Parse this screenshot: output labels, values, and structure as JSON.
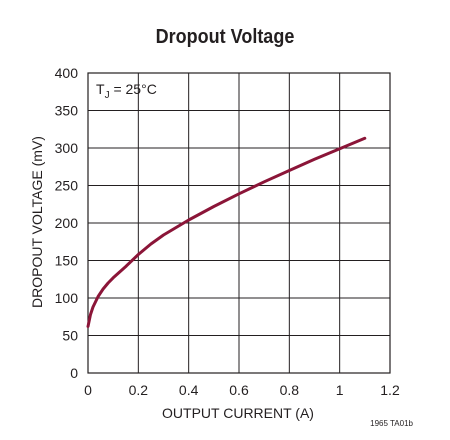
{
  "chart_data": {
    "type": "line",
    "title": "Dropout Voltage",
    "xlabel": "OUTPUT CURRENT (A)",
    "ylabel": "DROPOUT VOLTAGE (mV)",
    "xlim": [
      0,
      1.2
    ],
    "ylim": [
      0,
      400
    ],
    "x_ticks": [
      "0",
      "0.2",
      "0.4",
      "0.6",
      "0.8",
      "1",
      "1.2"
    ],
    "y_ticks": [
      "0",
      "50",
      "100",
      "150",
      "200",
      "250",
      "300",
      "350",
      "400"
    ],
    "grid": true,
    "annotation": "T",
    "annotation_sub": "J",
    "annotation_rest": " = 25°C",
    "figure_code": "1965 TA01b",
    "series_color": "#8b1538",
    "series": [
      {
        "x": [
          0,
          0.01,
          0.02,
          0.04,
          0.06,
          0.08,
          0.1,
          0.15,
          0.2,
          0.25,
          0.3,
          0.35,
          0.4,
          0.5,
          0.6,
          0.7,
          0.8,
          0.9,
          1.0,
          1.1
        ],
        "y": [
          62,
          78,
          88,
          102,
          112,
          120,
          127,
          142,
          158,
          172,
          184,
          194,
          204,
          222,
          239,
          255,
          270,
          285,
          299,
          313
        ]
      }
    ]
  }
}
